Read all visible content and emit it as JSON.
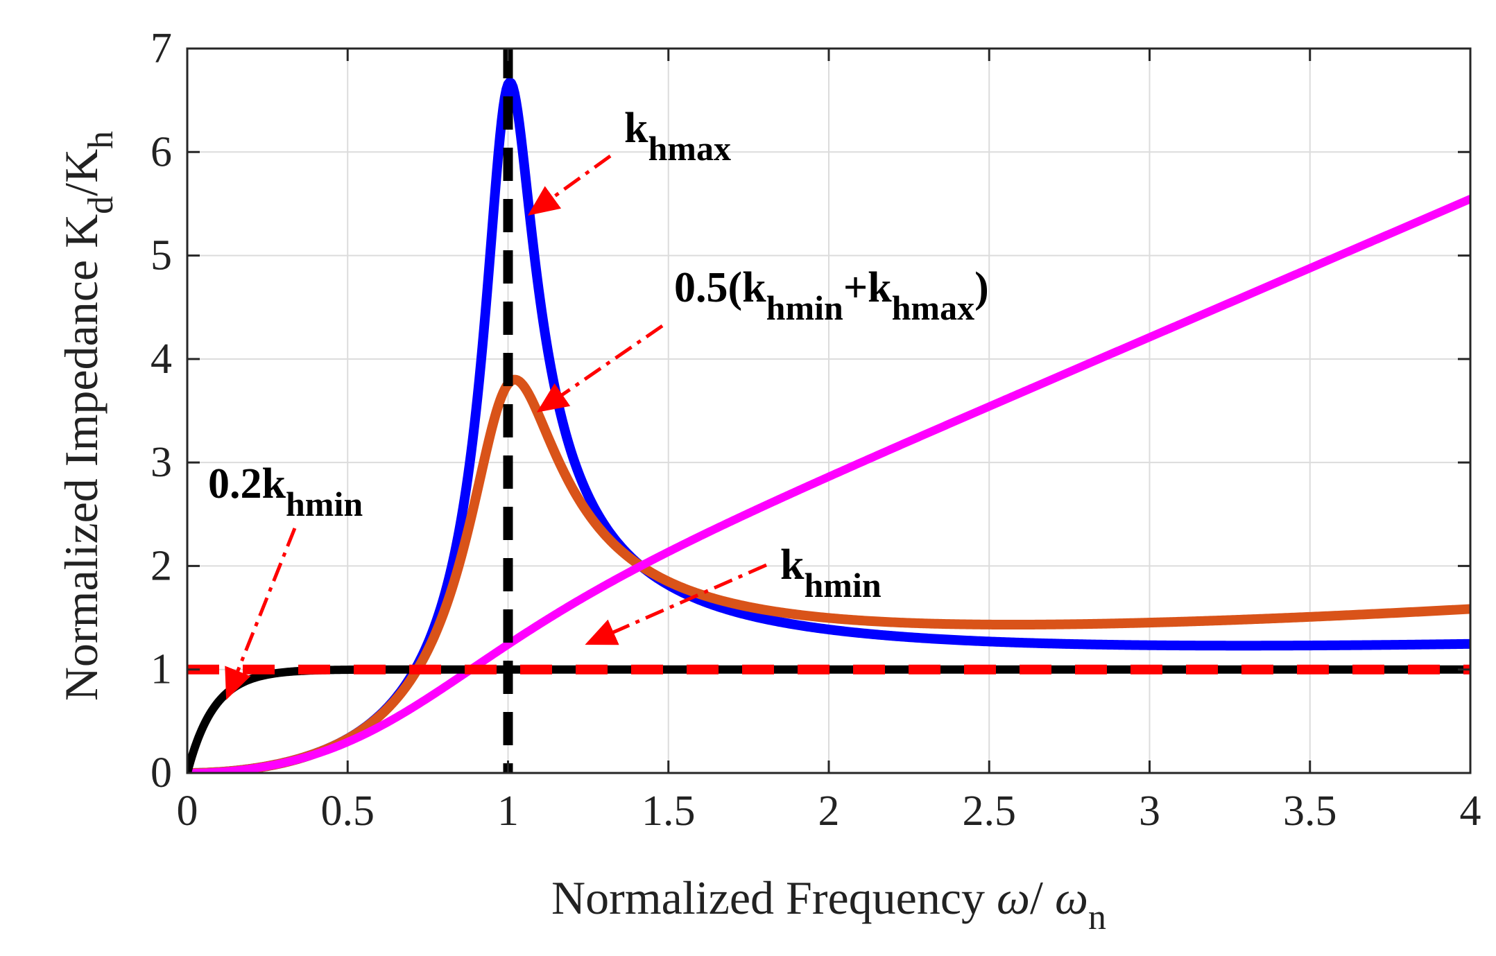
{
  "chart_data": {
    "type": "line",
    "xlabel": {
      "main": "Normalized Frequency ",
      "omega": "ω",
      "slash": "/ ",
      "omega_n": "ω",
      "sub": "n"
    },
    "ylabel": {
      "main": "Normalized  Impedance K",
      "sub1": "d",
      "slash": "/K",
      "sub2": "h"
    },
    "xlim": [
      0,
      4
    ],
    "ylim": [
      0,
      7
    ],
    "xticks": [
      "0",
      "0.5",
      "1",
      "1.5",
      "2",
      "2.5",
      "3",
      "3.5",
      "4"
    ],
    "yticks": [
      "0",
      "1",
      "2",
      "3",
      "4",
      "5",
      "6",
      "7"
    ],
    "grid": true,
    "resonance_line": {
      "x": 1,
      "color": "#000000",
      "style": "dashed"
    },
    "reference_line": {
      "y": 1,
      "color": "#ff0000",
      "style": "dashed"
    },
    "series": [
      {
        "key": "khmax",
        "color": "#0000ff",
        "damping": 0.076
      },
      {
        "key": "khalf",
        "color": "#d95319",
        "damping": 0.138
      },
      {
        "key": "khmin",
        "color": "#ff00ff",
        "damping": 0.68
      },
      {
        "key": "k02",
        "color": "#000000",
        "damping": 3.6
      }
    ],
    "sample_points": {
      "khmax": [
        [
          0.5,
          0.32
        ],
        [
          0.9,
          3.1
        ],
        [
          1.0,
          6.6
        ],
        [
          1.2,
          2.9
        ],
        [
          2.0,
          1.36
        ],
        [
          4.0,
          1.07
        ]
      ],
      "khalf": [
        [
          0.5,
          0.3
        ],
        [
          0.9,
          2.6
        ],
        [
          1.0,
          3.7
        ],
        [
          1.2,
          2.7
        ],
        [
          2.0,
          1.36
        ],
        [
          4.0,
          1.07
        ]
      ],
      "khmin": [
        [
          0.1,
          0.14
        ],
        [
          0.5,
          0.62
        ],
        [
          1.0,
          1.15
        ],
        [
          1.5,
          1.2
        ],
        [
          4.0,
          1.06
        ]
      ],
      "k02": [
        [
          0.05,
          0.44
        ],
        [
          0.1,
          0.76
        ],
        [
          0.2,
          0.92
        ],
        [
          0.5,
          0.99
        ],
        [
          4.0,
          1.0
        ]
      ]
    },
    "annotations": [
      {
        "key": "khmax",
        "parts": [
          {
            "t": "k",
            "sub": false
          },
          {
            "t": "hmax",
            "sub": true
          }
        ]
      },
      {
        "key": "khalf",
        "parts": [
          {
            "t": "0.5(k",
            "sub": false
          },
          {
            "t": "hmin",
            "sub": true
          },
          {
            "t": "+k",
            "sub": false
          },
          {
            "t": "hmax",
            "sub": true
          },
          {
            "t": ")",
            "sub": false
          }
        ]
      },
      {
        "key": "k02",
        "parts": [
          {
            "t": "0.2k",
            "sub": false
          },
          {
            "t": "hmin",
            "sub": true
          }
        ]
      },
      {
        "key": "khmin",
        "parts": [
          {
            "t": "k",
            "sub": false
          },
          {
            "t": "hmin",
            "sub": true
          }
        ]
      }
    ],
    "annotation_arrow_color": "#ff0000"
  }
}
